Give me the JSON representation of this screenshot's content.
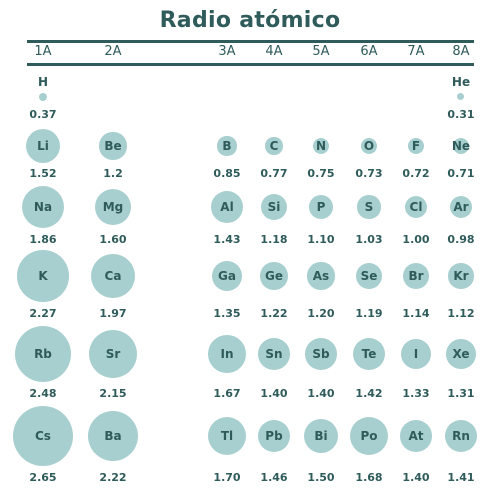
{
  "title": "Radio atómico",
  "groups": [
    "1A",
    "2A",
    "3A",
    "4A",
    "5A",
    "6A",
    "7A",
    "8A"
  ],
  "elements": [
    {
      "symbol": "H",
      "radius": "0.37",
      "group": "1A",
      "period": 1
    },
    {
      "symbol": "He",
      "radius": "0.31",
      "group": "8A",
      "period": 1
    },
    {
      "symbol": "Li",
      "radius": "1.52",
      "group": "1A",
      "period": 2
    },
    {
      "symbol": "Be",
      "radius": "1.2",
      "group": "2A",
      "period": 2
    },
    {
      "symbol": "B",
      "radius": "0.85",
      "group": "3A",
      "period": 2
    },
    {
      "symbol": "C",
      "radius": "0.77",
      "group": "4A",
      "period": 2
    },
    {
      "symbol": "N",
      "radius": "0.75",
      "group": "5A",
      "period": 2
    },
    {
      "symbol": "O",
      "radius": "0.73",
      "group": "6A",
      "period": 2
    },
    {
      "symbol": "F",
      "radius": "0.72",
      "group": "7A",
      "period": 2
    },
    {
      "symbol": "Ne",
      "radius": "0.71",
      "group": "8A",
      "period": 2
    },
    {
      "symbol": "Na",
      "radius": "1.86",
      "group": "1A",
      "period": 3
    },
    {
      "symbol": "Mg",
      "radius": "1.60",
      "group": "2A",
      "period": 3
    },
    {
      "symbol": "Al",
      "radius": "1.43",
      "group": "3A",
      "period": 3
    },
    {
      "symbol": "Si",
      "radius": "1.18",
      "group": "4A",
      "period": 3
    },
    {
      "symbol": "P",
      "radius": "1.10",
      "group": "5A",
      "period": 3
    },
    {
      "symbol": "S",
      "radius": "1.03",
      "group": "6A",
      "period": 3
    },
    {
      "symbol": "Cl",
      "radius": "1.00",
      "group": "7A",
      "period": 3
    },
    {
      "symbol": "Ar",
      "radius": "0.98",
      "group": "8A",
      "period": 3
    },
    {
      "symbol": "K",
      "radius": "2.27",
      "group": "1A",
      "period": 4
    },
    {
      "symbol": "Ca",
      "radius": "1.97",
      "group": "2A",
      "period": 4
    },
    {
      "symbol": "Ga",
      "radius": "1.35",
      "group": "3A",
      "period": 4
    },
    {
      "symbol": "Ge",
      "radius": "1.22",
      "group": "4A",
      "period": 4
    },
    {
      "symbol": "As",
      "radius": "1.20",
      "group": "5A",
      "period": 4
    },
    {
      "symbol": "Se",
      "radius": "1.19",
      "group": "6A",
      "period": 4
    },
    {
      "symbol": "Br",
      "radius": "1.14",
      "group": "7A",
      "period": 4
    },
    {
      "symbol": "Kr",
      "radius": "1.12",
      "group": "8A",
      "period": 4
    },
    {
      "symbol": "Rb",
      "radius": "2.48",
      "group": "1A",
      "period": 5
    },
    {
      "symbol": "Sr",
      "radius": "2.15",
      "group": "2A",
      "period": 5
    },
    {
      "symbol": "In",
      "radius": "1.67",
      "group": "3A",
      "period": 5
    },
    {
      "symbol": "Sn",
      "radius": "1.40",
      "group": "4A",
      "period": 5
    },
    {
      "symbol": "Sb",
      "radius": "1.40",
      "group": "5A",
      "period": 5
    },
    {
      "symbol": "Te",
      "radius": "1.42",
      "group": "6A",
      "period": 5
    },
    {
      "symbol": "I",
      "radius": "1.33",
      "group": "7A",
      "period": 5
    },
    {
      "symbol": "Xe",
      "radius": "1.31",
      "group": "8A",
      "period": 5
    },
    {
      "symbol": "Cs",
      "radius": "2.65",
      "group": "1A",
      "period": 6
    },
    {
      "symbol": "Ba",
      "radius": "2.22",
      "group": "2A",
      "period": 6
    },
    {
      "symbol": "Tl",
      "radius": "1.70",
      "group": "3A",
      "period": 6
    },
    {
      "symbol": "Pb",
      "radius": "1.46",
      "group": "4A",
      "period": 6
    },
    {
      "symbol": "Bi",
      "radius": "1.50",
      "group": "5A",
      "period": 6
    },
    {
      "symbol": "Po",
      "radius": "1.68",
      "group": "6A",
      "period": 6
    },
    {
      "symbol": "At",
      "radius": "1.40",
      "group": "7A",
      "period": 6
    },
    {
      "symbol": "Rn",
      "radius": "1.41",
      "group": "8A",
      "period": 6
    }
  ],
  "colors": {
    "circle": "#a8cfcf",
    "text": "#2f5b5b"
  }
}
